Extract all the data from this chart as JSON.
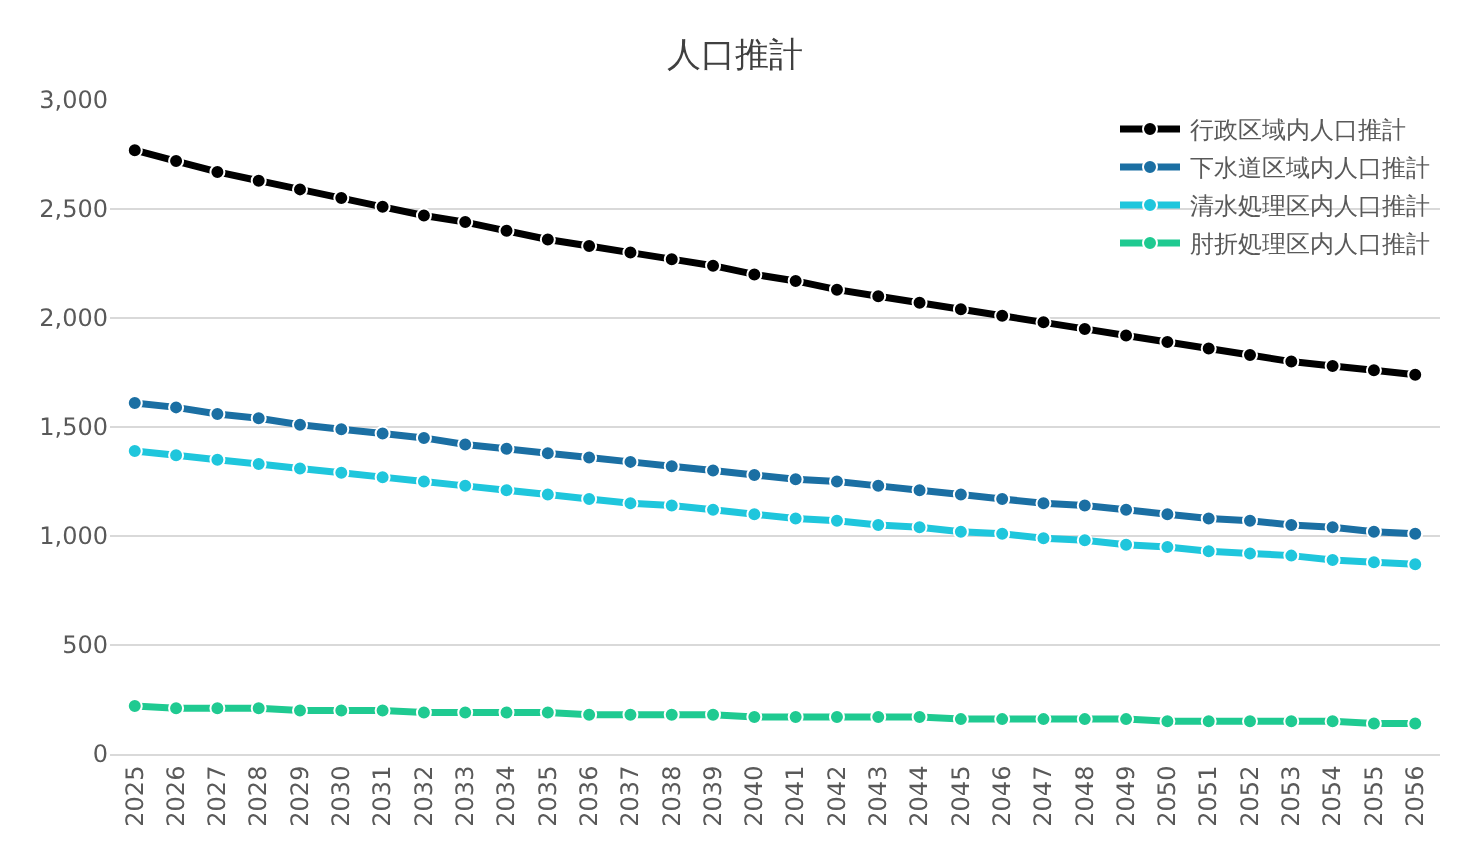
{
  "chart_data": {
    "type": "line",
    "title": "人口推計",
    "categories": [
      "2025",
      "2026",
      "2027",
      "2028",
      "2029",
      "2030",
      "2031",
      "2032",
      "2033",
      "2034",
      "2035",
      "2036",
      "2037",
      "2038",
      "2039",
      "2040",
      "2041",
      "2042",
      "2043",
      "2044",
      "2045",
      "2046",
      "2047",
      "2048",
      "2049",
      "2050",
      "2051",
      "2052",
      "2053",
      "2054",
      "2055",
      "2056"
    ],
    "series": [
      {
        "name": "行政区域内人口推計",
        "color": "#000000",
        "values": [
          2770,
          2720,
          2670,
          2630,
          2590,
          2550,
          2510,
          2470,
          2440,
          2400,
          2360,
          2330,
          2300,
          2270,
          2240,
          2200,
          2170,
          2130,
          2100,
          2070,
          2040,
          2010,
          1980,
          1950,
          1920,
          1890,
          1860,
          1830,
          1800,
          1780,
          1760,
          1740
        ]
      },
      {
        "name": "下水道区域内人口推計",
        "color": "#1b6fa3",
        "values": [
          1610,
          1590,
          1560,
          1540,
          1510,
          1490,
          1470,
          1450,
          1420,
          1400,
          1380,
          1360,
          1340,
          1320,
          1300,
          1280,
          1260,
          1250,
          1230,
          1210,
          1190,
          1170,
          1150,
          1140,
          1120,
          1100,
          1080,
          1070,
          1050,
          1040,
          1020,
          1010
        ]
      },
      {
        "name": "清水処理区内人口推計",
        "color": "#1fc6dc",
        "values": [
          1390,
          1370,
          1350,
          1330,
          1310,
          1290,
          1270,
          1250,
          1230,
          1210,
          1190,
          1170,
          1150,
          1140,
          1120,
          1100,
          1080,
          1070,
          1050,
          1040,
          1020,
          1010,
          990,
          980,
          960,
          950,
          930,
          920,
          910,
          890,
          880,
          870
        ]
      },
      {
        "name": "肘折処理区内人口推計",
        "color": "#1fca91",
        "values": [
          220,
          210,
          210,
          210,
          200,
          200,
          200,
          190,
          190,
          190,
          190,
          180,
          180,
          180,
          180,
          170,
          170,
          170,
          170,
          170,
          160,
          160,
          160,
          160,
          160,
          150,
          150,
          150,
          150,
          150,
          140,
          140
        ]
      }
    ],
    "ylim": [
      0,
      3000
    ],
    "yticks": [
      {
        "value": 0,
        "label": "0"
      },
      {
        "value": 500,
        "label": "500"
      },
      {
        "value": 1000,
        "label": "1,000"
      },
      {
        "value": 1500,
        "label": "1,500"
      },
      {
        "value": 2000,
        "label": "2,000"
      },
      {
        "value": 2500,
        "label": "2,500"
      },
      {
        "value": 3000,
        "label": "3,000"
      }
    ],
    "grid": "y",
    "legend": "top right",
    "marker": "circle",
    "line_style": "solid"
  }
}
